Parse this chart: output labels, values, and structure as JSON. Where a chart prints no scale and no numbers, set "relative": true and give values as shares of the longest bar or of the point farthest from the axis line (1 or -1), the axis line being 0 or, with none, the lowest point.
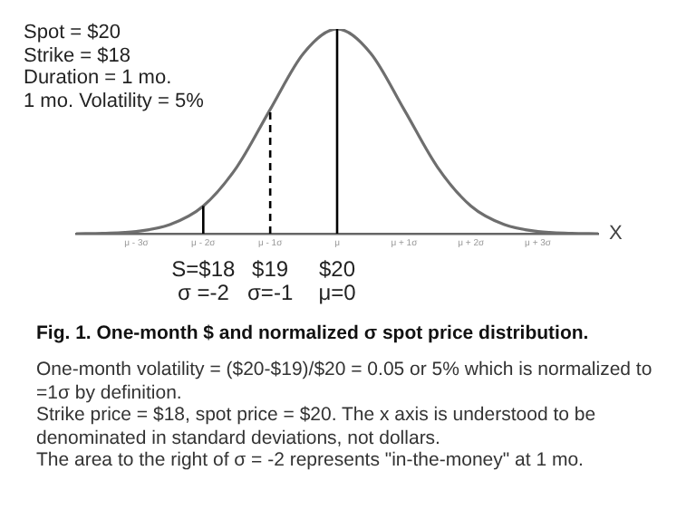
{
  "chart_data": {
    "type": "line",
    "relative": true,
    "title": "Fig. 1.  One-month $ and normalized σ spot price distribution.",
    "xlabel": "X",
    "x": [
      -3.9,
      -3.5,
      -3,
      -2.5,
      -2,
      -1.5,
      -1,
      -0.5,
      0,
      0.5,
      1,
      1.5,
      2,
      2.5,
      3,
      3.5,
      3.9
    ],
    "series": [
      {
        "color": "#6e6e6e",
        "values": [
          0,
          0.002,
          0.011,
          0.044,
          0.135,
          0.325,
          0.607,
          0.882,
          1,
          0.882,
          0.607,
          0.325,
          0.135,
          0.044,
          0.011,
          0.002,
          0
        ]
      }
    ],
    "xlim": [
      -3.9,
      3.9
    ],
    "xticks": [
      {
        "value": -3,
        "label": "μ - 3σ"
      },
      {
        "value": -2,
        "label": "μ - 2σ"
      },
      {
        "value": -1,
        "label": "μ - 1σ"
      },
      {
        "value": 0,
        "label": "μ"
      },
      {
        "value": 1,
        "label": "μ + 1σ"
      },
      {
        "value": 2,
        "label": "μ + 2σ"
      },
      {
        "value": 3,
        "label": "μ + 3σ"
      }
    ],
    "ref_lines": [
      {
        "axis": "x",
        "value": -2,
        "label": "S=$18\nσ =-2",
        "color": "#000000",
        "line_style": "solid"
      },
      {
        "axis": "x",
        "value": -1,
        "label": "$19\nσ=-1",
        "color": "#000000",
        "line_style": "dashed"
      },
      {
        "axis": "x",
        "value": 0,
        "label": "$20\nμ=0",
        "color": "#000000",
        "line_style": "solid"
      }
    ],
    "annotations": [
      "Spot = $20\nStrike = $18\nDuration =  1 mo.\n1 mo. Volatility = 5%",
      "One-month volatility = ($20-$19)/$20 = 0.05 or 5% which is normalized to =1σ by definition.\nStrike price = $18, spot price = $20.  The x axis is understood to be denominated in standard deviations, not dollars.\nThe area to the right of σ = -2 represents \"in-the-money\" at 1 mo."
    ],
    "grid": false,
    "legend": false,
    "marker": "none",
    "line_style": "solid"
  }
}
